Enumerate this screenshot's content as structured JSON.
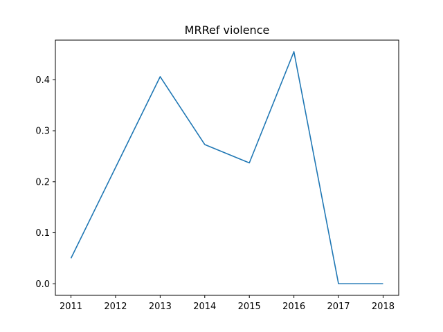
{
  "chart_data": {
    "type": "line",
    "title": "MRRef violence",
    "xlabel": "",
    "ylabel": "",
    "x": [
      2011,
      2012,
      2013,
      2014,
      2015,
      2016,
      2017,
      2018
    ],
    "x_tick_labels": [
      "2011",
      "2012",
      "2013",
      "2014",
      "2015",
      "2016",
      "2017",
      "2018"
    ],
    "y_ticks": [
      0.0,
      0.1,
      0.2,
      0.3,
      0.4
    ],
    "y_tick_labels": [
      "0.0",
      "0.1",
      "0.2",
      "0.3",
      "0.4"
    ],
    "xlim": [
      2010.65,
      2018.35
    ],
    "ylim": [
      -0.0227,
      0.4777
    ],
    "grid": false,
    "series": [
      {
        "values": [
          0.05,
          0.228,
          0.406,
          0.273,
          0.237,
          0.455,
          0.0,
          0.0
        ],
        "color": "#1f77b4"
      }
    ]
  }
}
